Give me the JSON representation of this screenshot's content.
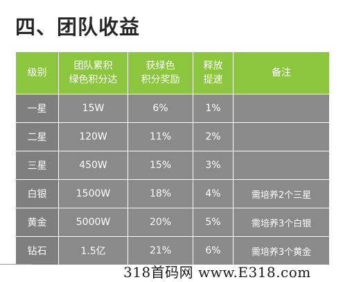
{
  "title": "四、团队收益",
  "table": {
    "headers": [
      {
        "line1": "级别",
        "line2": ""
      },
      {
        "line1": "团队累积",
        "line2": "绿色积分达"
      },
      {
        "line1": "获绿色",
        "line2": "积分奖励"
      },
      {
        "line1": "释放",
        "line2": "提速"
      },
      {
        "line1": "备注",
        "line2": ""
      }
    ],
    "rows": [
      {
        "level": "一星",
        "points": "15W",
        "reward": "6%",
        "speed": "1%",
        "note": ""
      },
      {
        "level": "二星",
        "points": "120W",
        "reward": "11%",
        "speed": "2%",
        "note": ""
      },
      {
        "level": "三星",
        "points": "450W",
        "reward": "15%",
        "speed": "3%",
        "note": ""
      },
      {
        "level": "白银",
        "points": "1500W",
        "reward": "18%",
        "speed": "4%",
        "note": "需培养2个三星"
      },
      {
        "level": "黄金",
        "points": "5000W",
        "reward": "20%",
        "speed": "5%",
        "note": "需培养3个白银"
      },
      {
        "level": "钻石",
        "points": "1.5亿",
        "reward": "21%",
        "speed": "6%",
        "note": "需培养3个黄金"
      }
    ]
  },
  "watermark": "318首码网 www.E318.com",
  "colors": {
    "header_green": "#8cc63f",
    "cell_gray": "#8a8a8a",
    "title_text": "#262626"
  }
}
